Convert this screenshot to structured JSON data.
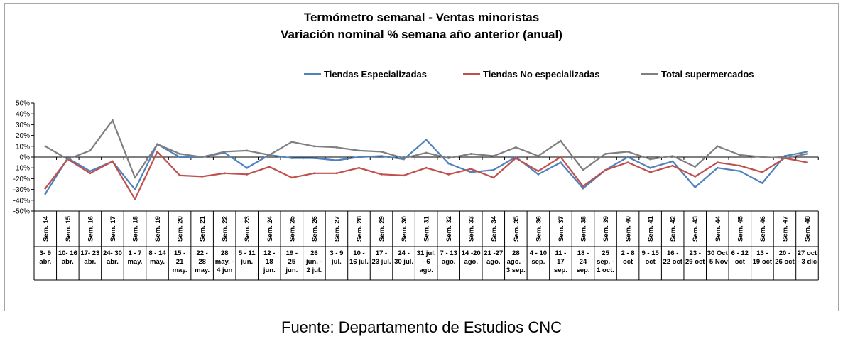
{
  "chart_data": {
    "type": "line",
    "title": "Termómetro semanal - Ventas minoristas",
    "subtitle": "Variación nominal % semana año anterior (anual)",
    "y_ticks": [
      "50%",
      "40%",
      "30%",
      "20%",
      "10%",
      "0%",
      "-10%",
      "-20%",
      "-30%",
      "-40%",
      "-50%"
    ],
    "ylim": [
      -50,
      50
    ],
    "legend_position": "top",
    "categories": [
      {
        "week": "Sem. 14",
        "range": [
          "3- 9",
          "abr."
        ]
      },
      {
        "week": "Sem. 15",
        "range": [
          "10- 16",
          "abr."
        ]
      },
      {
        "week": "Sem. 16",
        "range": [
          "17- 23",
          "abr."
        ]
      },
      {
        "week": "Sem. 17",
        "range": [
          "24- 30",
          "abr."
        ]
      },
      {
        "week": "Sem. 18",
        "range": [
          "1 - 7",
          "may."
        ]
      },
      {
        "week": "Sem. 19",
        "range": [
          "8 - 14",
          "may."
        ]
      },
      {
        "week": "Sem. 20",
        "range": [
          "15 -",
          "21",
          "may."
        ]
      },
      {
        "week": "Sem. 21",
        "range": [
          "22 -",
          "28",
          "may."
        ]
      },
      {
        "week": "Sem. 22",
        "range": [
          "28",
          "may. -",
          "4 jun"
        ]
      },
      {
        "week": "Sem. 23",
        "range": [
          "5 - 11",
          "jun."
        ]
      },
      {
        "week": "Sem. 24",
        "range": [
          "12 -",
          "18",
          "jun."
        ]
      },
      {
        "week": "Sem. 25",
        "range": [
          "19 -",
          "25",
          "jun."
        ]
      },
      {
        "week": "Sem. 26",
        "range": [
          "26",
          "jun. -",
          "2 jul."
        ]
      },
      {
        "week": "Sem. 27",
        "range": [
          "3 - 9",
          "jul."
        ]
      },
      {
        "week": "Sem. 28",
        "range": [
          "10 -",
          "16 jul."
        ]
      },
      {
        "week": "Sem. 29",
        "range": [
          "17 -",
          "23 jul."
        ]
      },
      {
        "week": "Sem. 30",
        "range": [
          "24 -",
          "30 jul."
        ]
      },
      {
        "week": "Sem. 31",
        "range": [
          "31 jul.",
          "- 6",
          "ago."
        ]
      },
      {
        "week": "Sem. 32",
        "range": [
          "7 - 13",
          "ago."
        ]
      },
      {
        "week": "Sem. 33",
        "range": [
          "14 -20",
          "ago."
        ]
      },
      {
        "week": "Sem. 34",
        "range": [
          "21 -27",
          "ago."
        ]
      },
      {
        "week": "Sem. 35",
        "range": [
          "28",
          "ago. -",
          "3 sep."
        ]
      },
      {
        "week": "Sem. 36",
        "range": [
          "4 - 10",
          "sep."
        ]
      },
      {
        "week": "Sem. 37",
        "range": [
          "11 -",
          "17",
          "sep."
        ]
      },
      {
        "week": "Sem. 38",
        "range": [
          "18 -",
          "24",
          "sep."
        ]
      },
      {
        "week": "Sem. 39",
        "range": [
          "25",
          "sep. -",
          "1 oct."
        ]
      },
      {
        "week": "Sem. 40",
        "range": [
          "2 - 8",
          "oct"
        ]
      },
      {
        "week": "Sem. 41",
        "range": [
          "9 - 15",
          "oct"
        ]
      },
      {
        "week": "Sem. 42",
        "range": [
          "16 -",
          "22 oct"
        ]
      },
      {
        "week": "Sem. 43",
        "range": [
          "23 -",
          "29 oct"
        ]
      },
      {
        "week": "Sem. 44",
        "range": [
          "30 Oct",
          "-5 Nov"
        ]
      },
      {
        "week": "Sem. 45",
        "range": [
          "6 - 12",
          "oct"
        ]
      },
      {
        "week": "Sem. 46",
        "range": [
          "13 -",
          "19 oct"
        ]
      },
      {
        "week": "Sem. 47",
        "range": [
          "20 -",
          "26 oct"
        ]
      },
      {
        "week": "Sem. 48",
        "range": [
          "27 oct",
          "- 3 dic"
        ]
      }
    ],
    "series": [
      {
        "name": "Tiendas Especializadas",
        "color": "#4f81bd",
        "values": [
          -34,
          -1,
          -13,
          -4,
          -30,
          12,
          0,
          0,
          4,
          -10,
          2,
          -1,
          -1,
          -3,
          0,
          1,
          -2,
          16,
          -6,
          -14,
          -12,
          0,
          -16,
          -5,
          -29,
          -12,
          0,
          -10,
          -4,
          -28,
          -10,
          -13,
          -24,
          1,
          5
        ]
      },
      {
        "name": "Tiendas No especializadas",
        "color": "#c0504d",
        "values": [
          -29,
          -2,
          -15,
          -4,
          -39,
          5,
          -17,
          -18,
          -15,
          -16,
          -9,
          -19,
          -15,
          -15,
          -10,
          -16,
          -17,
          -10,
          -16,
          -11,
          -19,
          -1,
          -13,
          0,
          -27,
          -12,
          -5,
          -14,
          -8,
          -18,
          -5,
          -8,
          -14,
          -1,
          -5
        ]
      },
      {
        "name": "Total supermercados",
        "color": "#7f7f7f",
        "values": [
          10,
          -2,
          6,
          34,
          -19,
          12,
          3,
          0,
          5,
          6,
          2,
          14,
          10,
          9,
          6,
          5,
          -1,
          4,
          -1,
          3,
          1,
          9,
          1,
          15,
          -12,
          3,
          5,
          -2,
          1,
          -9,
          10,
          2,
          0,
          -1,
          3
        ]
      }
    ]
  },
  "footer": {
    "source": "Fuente: Departamento de Estudios CNC"
  }
}
